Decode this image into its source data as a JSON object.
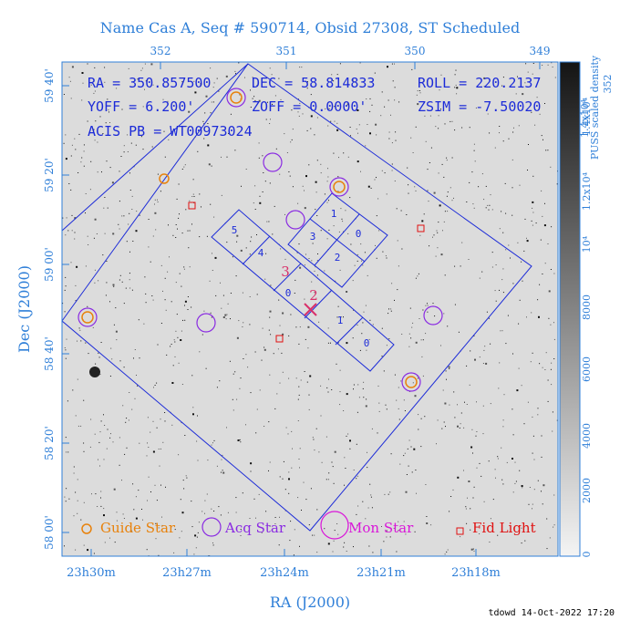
{
  "title": "Name Cas A, Seq # 590714, Obsid 27308, ST Scheduled",
  "info_lines": [
    "RA = 350.857500",
    "DEC = 58.814833",
    "ROLL = 220.2137",
    "YOFF = 6.200'",
    "ZOFF = 0.0000'",
    "ZSIM = -7.50020",
    "ACIS PB = WT00973024"
  ],
  "top_axis_ticks": [
    "352",
    "351",
    "350",
    "349"
  ],
  "bottom_axis_ticks": [
    "23h30m",
    "23h27m",
    "23h24m",
    "23h21m",
    "23h18m"
  ],
  "left_axis_ticks": [
    "59 40'",
    "59 20'",
    "59 00'",
    "58 40'",
    "58 20'",
    "58 00'"
  ],
  "x_label": "RA (J2000)",
  "y_label": "Dec (J2000)",
  "colorbar": {
    "label_line1": "PUSS scaled density",
    "label_line2": "1.4x10⁴",
    "label_line3": "352",
    "ticks": [
      "0",
      "2000",
      "4000",
      "6000",
      "8000",
      "10⁴",
      "1.2x10⁴",
      "1.4x10⁴"
    ]
  },
  "chip_labels": {
    "upper": [
      "1",
      "3",
      "0",
      "2"
    ],
    "strip": [
      "5",
      "4",
      "0",
      "1",
      "0"
    ],
    "markers": [
      "3",
      "2"
    ]
  },
  "legend": {
    "guide": "Guide Star",
    "acq": "Acq Star",
    "mon": "Mon Star",
    "fid": "Fid Light"
  },
  "colors": {
    "axis_text": "#2f7fd8",
    "overlay": "#1c2bd8",
    "guide": "#e8820c",
    "acq": "#8a2be2",
    "mon": "#d916d9",
    "fid": "#e01010",
    "marker": "#d9306a"
  },
  "footer": "tdowd 14-Oct-2022 17:20"
}
